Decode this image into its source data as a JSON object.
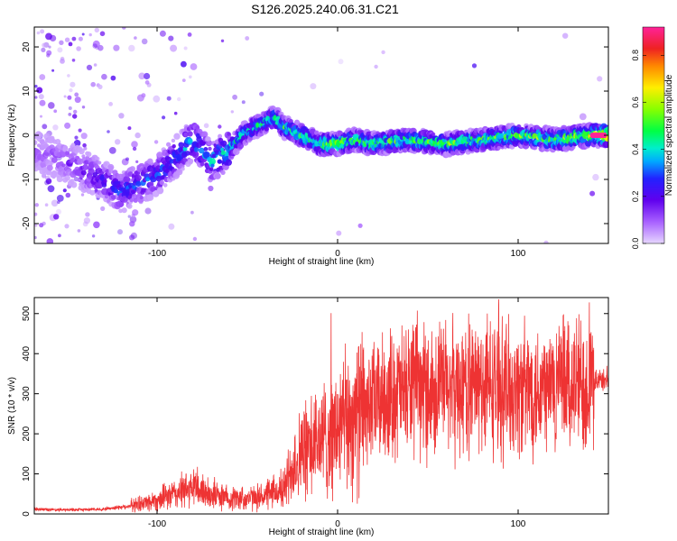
{
  "figure_title": "S126.2025.240.06.31.C21",
  "colors": {
    "snr_line": "#ee3333",
    "axis": "#000000",
    "colormap": [
      "#e6d6ff",
      "#a860ff",
      "#6000ee",
      "#2222ff",
      "#00aaff",
      "#00eecc",
      "#00ff44",
      "#88ff00",
      "#ffee00",
      "#ff8800",
      "#ee2222",
      "#ff2299"
    ]
  },
  "chart_data": [
    {
      "type": "heatmap",
      "title": "",
      "xlabel": "Height of straight line (km)",
      "ylabel": "Frequency (Hz)",
      "xlim": [
        -168,
        150
      ],
      "ylim": [
        -24.5,
        24.5
      ],
      "xticks": [
        -100,
        0,
        100
      ],
      "xtick_labels": [
        "-100",
        "0",
        "100"
      ],
      "yticks": [
        -20,
        -10,
        0,
        10,
        20
      ],
      "ytick_labels": [
        "-20",
        "-10",
        "0",
        "10",
        "20"
      ],
      "colorbar": {
        "label": "Normalized spectral amplitude",
        "range": [
          0,
          0.92
        ],
        "ticks": [
          0.0,
          0.2,
          0.4,
          0.6,
          0.8
        ],
        "tick_labels": [
          "0.0",
          "0.2",
          "0.4",
          "0.6",
          "0.8"
        ]
      },
      "ridge": {
        "x": [
          -165,
          -150,
          -130,
          -120,
          -110,
          -100,
          -90,
          -80,
          -70,
          -60,
          -50,
          -40,
          -35,
          -30,
          -20,
          -10,
          0,
          10,
          20,
          40,
          60,
          80,
          100,
          120,
          140,
          150
        ],
        "y": [
          -4,
          -6,
          -10,
          -13,
          -11,
          -9,
          -5,
          -1,
          -6,
          -3,
          1,
          3,
          4,
          2,
          0,
          -2,
          -2,
          -1,
          -2,
          -1,
          -2,
          -1,
          0,
          -1,
          0,
          0
        ],
        "amplitude": [
          0.12,
          0.15,
          0.25,
          0.3,
          0.3,
          0.3,
          0.35,
          0.4,
          0.4,
          0.45,
          0.45,
          0.5,
          0.55,
          0.5,
          0.5,
          0.55,
          0.6,
          0.55,
          0.55,
          0.55,
          0.55,
          0.55,
          0.55,
          0.6,
          0.7,
          0.92
        ]
      }
    },
    {
      "type": "line",
      "title": "",
      "xlabel": "Height of straight line (km)",
      "ylabel": "SNR (10 * v/v)",
      "xlim": [
        -168,
        150
      ],
      "ylim": [
        0,
        540
      ],
      "xticks": [
        -100,
        0,
        100
      ],
      "xtick_labels": [
        "-100",
        "0",
        "100"
      ],
      "yticks": [
        0,
        100,
        200,
        300,
        400,
        500
      ],
      "ytick_labels": [
        "0",
        "100",
        "200",
        "300",
        "400",
        "500"
      ],
      "series": [
        {
          "name": "SNR",
          "x": [
            -168,
            -150,
            -130,
            -115,
            -100,
            -90,
            -80,
            -70,
            -60,
            -50,
            -40,
            -30,
            -25,
            -20,
            -10,
            0,
            10,
            20,
            30,
            40,
            60,
            80,
            100,
            120,
            140,
            150
          ],
          "y": [
            12,
            10,
            12,
            20,
            35,
            50,
            65,
            50,
            40,
            38,
            45,
            60,
            120,
            150,
            180,
            210,
            245,
            275,
            300,
            310,
            315,
            320,
            310,
            320,
            330,
            335
          ]
        }
      ]
    }
  ]
}
